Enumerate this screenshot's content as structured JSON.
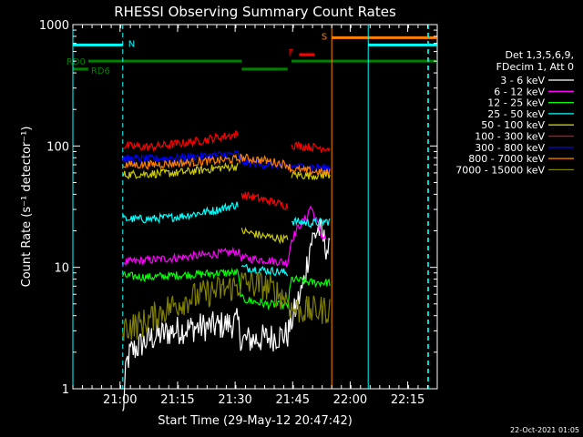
{
  "chart_data": {
    "type": "line",
    "title": "RHESSI Observing Summary Count Rates",
    "xlabel": "Start Time (29-May-12 20:47:42)",
    "ylabel": "Count Rate (s⁻¹ detector⁻¹)",
    "yscale": "log",
    "ylim": [
      1,
      1000
    ],
    "xlim_minutes": [
      0,
      95
    ],
    "x_tick_labels": [
      "21:00",
      "21:15",
      "21:30",
      "21:45",
      "22:00",
      "22:15"
    ],
    "x_tick_minutes": [
      12.3,
      27.3,
      42.3,
      57.3,
      72.3,
      87.3
    ],
    "y_tick_labels": [
      "1",
      "10",
      "100",
      "1000"
    ],
    "y_tick_values": [
      1,
      10,
      100,
      1000
    ],
    "legend_header": [
      "Det 1,3,5,6,9,",
      "FDecim 1, Att 0"
    ],
    "legend_placement": "right",
    "timestamp": "22-Oct-2021 01:05",
    "series": [
      {
        "name": "3 - 6 keV",
        "color": "#ffffff",
        "points": [
          [
            13,
            0.6
          ],
          [
            14,
            1.6
          ],
          [
            15,
            2.0
          ],
          [
            20,
            2.6
          ],
          [
            26,
            3.0
          ],
          [
            32,
            3.2
          ],
          [
            38,
            3.3
          ],
          [
            43,
            3.5
          ],
          [
            44,
            2.5
          ],
          [
            50,
            2.6
          ],
          [
            56,
            2.8
          ],
          [
            57,
            3.6
          ],
          [
            60,
            7
          ],
          [
            62,
            16
          ],
          [
            64,
            21
          ],
          [
            65,
            18
          ],
          [
            66,
            15
          ],
          [
            67,
            13
          ]
        ]
      },
      {
        "name": "6 - 12 keV",
        "color": "#ff00ff",
        "points": [
          [
            13,
            11
          ],
          [
            20,
            11.5
          ],
          [
            27,
            12
          ],
          [
            33,
            12.5
          ],
          [
            38,
            13
          ],
          [
            43,
            13.5
          ],
          [
            44,
            12
          ],
          [
            50,
            11.5
          ],
          [
            56,
            11
          ],
          [
            57,
            17
          ],
          [
            59,
            22
          ],
          [
            61,
            26
          ],
          [
            62,
            32
          ],
          [
            64,
            22
          ],
          [
            65,
            18
          ],
          [
            66,
            17
          ]
        ]
      },
      {
        "name": "12 - 25 keV",
        "color": "#00ff00",
        "points": [
          [
            13,
            8.5
          ],
          [
            20,
            8.3
          ],
          [
            27,
            8.6
          ],
          [
            33,
            8.8
          ],
          [
            38,
            9
          ],
          [
            43,
            9
          ],
          [
            44,
            5.5
          ],
          [
            50,
            5
          ],
          [
            56,
            4.8
          ],
          [
            57,
            8
          ],
          [
            62,
            7.5
          ],
          [
            67,
            7.5
          ]
        ]
      },
      {
        "name": "25 - 50 keV",
        "color": "#00ffff",
        "points": [
          [
            13,
            25
          ],
          [
            20,
            25
          ],
          [
            27,
            26
          ],
          [
            33,
            28
          ],
          [
            38,
            30
          ],
          [
            43,
            33
          ],
          [
            44,
            10
          ],
          [
            50,
            9.5
          ],
          [
            56,
            9
          ],
          [
            57,
            24
          ],
          [
            62,
            23
          ],
          [
            67,
            24
          ]
        ]
      },
      {
        "name": "50 - 100 keV",
        "color": "#cccc00",
        "points": [
          [
            13,
            58
          ],
          [
            20,
            59
          ],
          [
            27,
            60
          ],
          [
            33,
            63
          ],
          [
            38,
            66
          ],
          [
            43,
            68
          ],
          [
            44,
            20
          ],
          [
            50,
            18
          ],
          [
            56,
            17
          ],
          [
            57,
            58
          ],
          [
            62,
            57
          ],
          [
            67,
            58
          ]
        ]
      },
      {
        "name": "100 - 300 keV",
        "color": "#ff0000",
        "points": [
          [
            13,
            100
          ],
          [
            20,
            98
          ],
          [
            27,
            104
          ],
          [
            33,
            110
          ],
          [
            38,
            118
          ],
          [
            43,
            125
          ],
          [
            44,
            40
          ],
          [
            50,
            36
          ],
          [
            56,
            32
          ],
          [
            57,
            102
          ],
          [
            62,
            98
          ],
          [
            67,
            96
          ]
        ]
      },
      {
        "name": "300 - 800 keV",
        "color": "#0000ff",
        "points": [
          [
            13,
            78
          ],
          [
            20,
            78
          ],
          [
            27,
            80
          ],
          [
            33,
            82
          ],
          [
            38,
            84
          ],
          [
            43,
            86
          ],
          [
            44,
            74
          ],
          [
            50,
            71
          ],
          [
            56,
            68
          ],
          [
            57,
            68
          ],
          [
            62,
            67
          ],
          [
            67,
            66
          ]
        ]
      },
      {
        "name": "800 - 7000 keV",
        "color": "#ff8000",
        "points": [
          [
            13,
            70
          ],
          [
            20,
            70
          ],
          [
            27,
            72
          ],
          [
            33,
            74
          ],
          [
            38,
            76
          ],
          [
            43,
            78
          ],
          [
            44,
            80
          ],
          [
            50,
            76
          ],
          [
            56,
            70
          ],
          [
            57,
            64
          ],
          [
            62,
            62
          ],
          [
            67,
            60
          ]
        ]
      },
      {
        "name": "7000 - 15000 keV",
        "color": "#808000",
        "points": [
          [
            13,
            3.2
          ],
          [
            18,
            3.4
          ],
          [
            24,
            4.5
          ],
          [
            30,
            5.5
          ],
          [
            38,
            6.5
          ],
          [
            43,
            7
          ],
          [
            44,
            7.5
          ],
          [
            50,
            7
          ],
          [
            56,
            5.5
          ],
          [
            57,
            4.5
          ],
          [
            62,
            4.4
          ],
          [
            67,
            4.5
          ]
        ]
      }
    ],
    "state_bars": [
      {
        "label": "N",
        "color": "#00ffff",
        "x_minutes": [
          0,
          13
        ],
        "level": 680
      },
      {
        "label": "RD0",
        "color": "#008000",
        "x_minutes": [
          4,
          44
        ],
        "level": 500
      },
      {
        "label": "RD6",
        "color": "#008000",
        "x_minutes": [
          0,
          4
        ],
        "level": 430
      },
      {
        "label": "",
        "color": "#008000",
        "x_minutes": [
          44,
          56
        ],
        "level": 430
      },
      {
        "label": "",
        "color": "#008000",
        "x_minutes": [
          57,
          95
        ],
        "level": 500
      },
      {
        "label": "F",
        "color": "#ff0000",
        "x_minutes": [
          59,
          63
        ],
        "level": 565
      },
      {
        "label": "S",
        "color": "#ff8000",
        "x_minutes": [
          67.5,
          95
        ],
        "level": 780
      },
      {
        "label": "",
        "color": "#00ffff",
        "x_minutes": [
          77,
          95
        ],
        "level": 680
      }
    ],
    "vlines": [
      {
        "x_minutes": 0,
        "color": "#00ffff",
        "dashed": false
      },
      {
        "x_minutes": 13,
        "color": "#00ffff",
        "dashed": true
      },
      {
        "x_minutes": 67.5,
        "color": "#ff8000",
        "dashed": false
      },
      {
        "x_minutes": 77,
        "color": "#00ffff",
        "dashed": false
      },
      {
        "x_minutes": 92.5,
        "color": "#ff8000",
        "dashed": true
      },
      {
        "x_minutes": 92.7,
        "color": "#00ffff",
        "dashed": true
      }
    ]
  }
}
